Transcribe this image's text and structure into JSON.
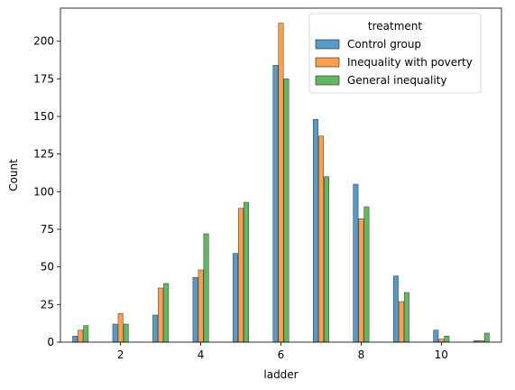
{
  "chart_data": {
    "type": "bar",
    "xlabel": "ladder",
    "ylabel": "Count",
    "xlim": [
      0.5,
      11.5
    ],
    "ylim": [
      0,
      222
    ],
    "xticks": [
      2,
      4,
      6,
      8,
      10
    ],
    "yticks": [
      0,
      25,
      50,
      75,
      100,
      125,
      150,
      175,
      200
    ],
    "grid": false,
    "legend": {
      "title": "treatment",
      "placement": "top-right"
    },
    "categories": [
      1,
      2,
      3,
      4,
      5,
      6,
      7,
      8,
      9,
      10,
      11
    ],
    "series": [
      {
        "name": "Control group",
        "color": "#1f77b4",
        "values": [
          4,
          12,
          18,
          43,
          59,
          184,
          148,
          105,
          44,
          8,
          1
        ]
      },
      {
        "name": "Inequality with poverty",
        "color": "#ff7f0e",
        "values": [
          8,
          19,
          36,
          48,
          89,
          212,
          137,
          82,
          27,
          2,
          1
        ]
      },
      {
        "name": "General inequality",
        "color": "#2ca02c",
        "values": [
          11,
          12,
          39,
          72,
          93,
          175,
          110,
          90,
          33,
          4,
          6
        ]
      }
    ]
  }
}
